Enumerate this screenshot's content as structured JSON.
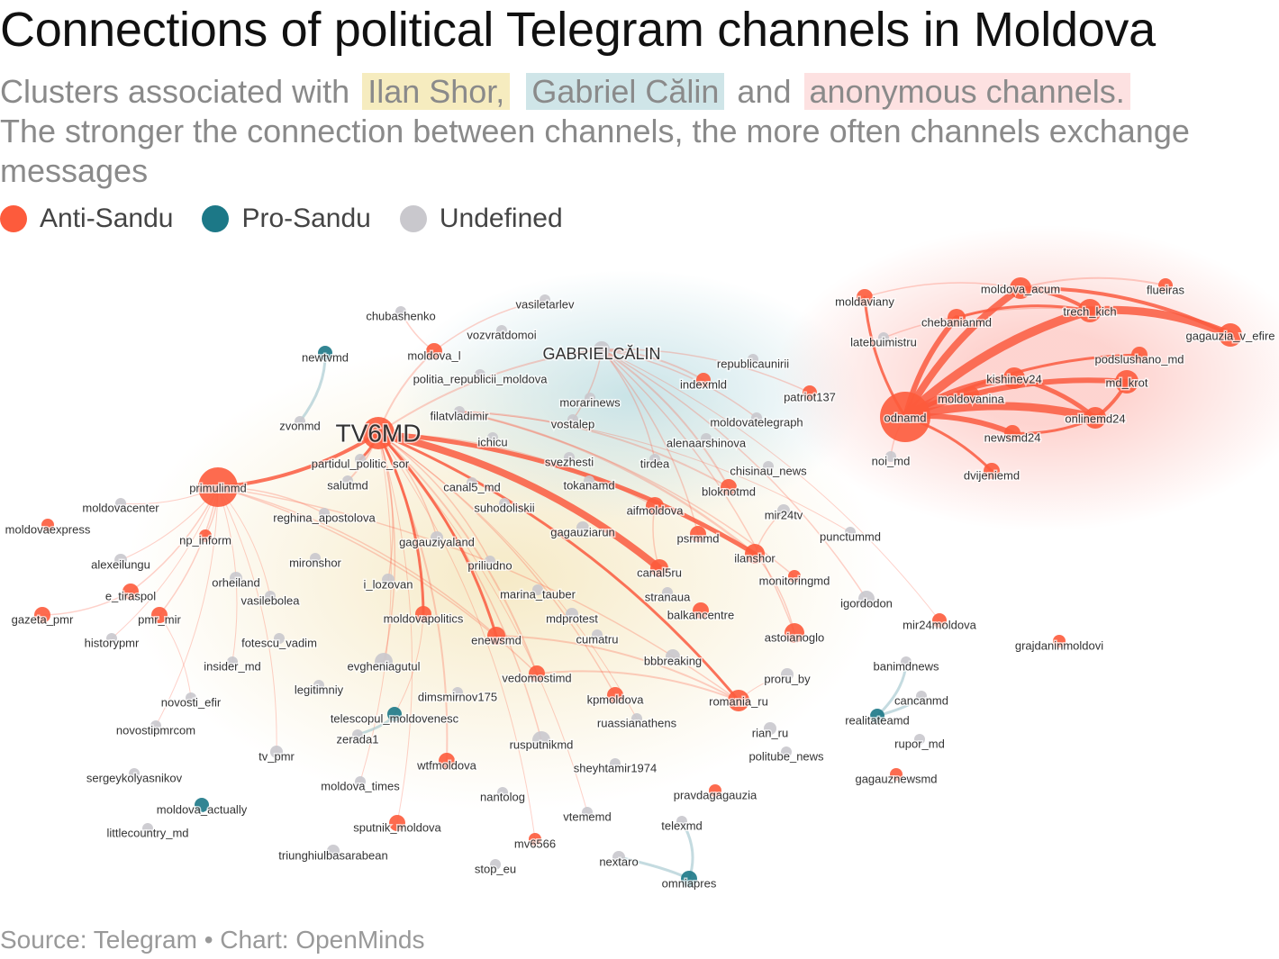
{
  "header": {
    "title": "Connections of political Telegram channels in Moldova",
    "subtitle": {
      "lead": "Clusters associated with",
      "highlights": [
        {
          "text": "Ilan Shor,",
          "color": "#f6ecbf"
        },
        {
          "text": "Gabriel Călin",
          "color": "#cfe5e8"
        }
      ],
      "joiner": "and",
      "last": {
        "text": "anonymous channels.",
        "color": "#fde1e1"
      },
      "note": "The stronger the connection between channels, the more often channels exchange messages"
    }
  },
  "legend": [
    {
      "label": "Anti-Sandu",
      "color": "#fd5b3c"
    },
    {
      "label": "Pro-Sandu",
      "color": "#1c7887"
    },
    {
      "label": "Undefined",
      "color": "#c9c8cd"
    }
  ],
  "nodes": [
    {
      "label": "moldova_acum",
      "color": "#fd5b3c"
    },
    {
      "label": "flueiras",
      "color": "#fd5b3c"
    },
    {
      "label": "moldaviany",
      "color": "#fd5b3c"
    },
    {
      "label": "chebanianmd",
      "color": "#fd5b3c"
    },
    {
      "label": "trech_kich",
      "color": "#fd5b3c"
    },
    {
      "label": "latebuimistru",
      "color": "#c9c8cd"
    },
    {
      "label": "gagauzia_v_efire",
      "color": "#fd5b3c"
    },
    {
      "label": "podslushano_md",
      "color": "#fd5b3c"
    },
    {
      "label": "kishinev24",
      "color": "#fd5b3c"
    },
    {
      "label": "md_krot",
      "color": "#fd5b3c"
    },
    {
      "label": "moldovanina",
      "color": "#fd5b3c"
    },
    {
      "label": "odnamd",
      "color": "#fd5b3c"
    },
    {
      "label": "onlinemd24",
      "color": "#fd5b3c"
    },
    {
      "label": "newsmd24",
      "color": "#fd5b3c"
    },
    {
      "label": "noi_md",
      "color": "#c9c8cd"
    },
    {
      "label": "dvijeniemd",
      "color": "#fd5b3c"
    },
    {
      "label": "vasiletarlev",
      "color": "#c9c8cd"
    },
    {
      "label": "chubashenko",
      "color": "#c9c8cd"
    },
    {
      "label": "vozvratdomoi",
      "color": "#c9c8cd"
    },
    {
      "label": "newtvmd",
      "color": "#1c7887"
    },
    {
      "label": "moldova_l",
      "color": "#fd5b3c"
    },
    {
      "label": "GABRIELCĂLIN",
      "color": "#c9c8cd"
    },
    {
      "label": "politia_republicii_moldova",
      "color": "#c9c8cd"
    },
    {
      "label": "republicaunirii",
      "color": "#c9c8cd"
    },
    {
      "label": "indexmld",
      "color": "#fd5b3c"
    },
    {
      "label": "patriot137",
      "color": "#fd5b3c"
    },
    {
      "label": "morarinews",
      "color": "#c9c8cd"
    },
    {
      "label": "zvonmd",
      "color": "#c9c8cd"
    },
    {
      "label": "TV6MD",
      "color": "#fd5b3c"
    },
    {
      "label": "filatvladimir",
      "color": "#c9c8cd"
    },
    {
      "label": "vostalep",
      "color": "#c9c8cd"
    },
    {
      "label": "moldovatelegraph",
      "color": "#c9c8cd"
    },
    {
      "label": "ichicu",
      "color": "#c9c8cd"
    },
    {
      "label": "alenaarshinova",
      "color": "#c9c8cd"
    },
    {
      "label": "partidul_politic_sor",
      "color": "#c9c8cd"
    },
    {
      "label": "svezhesti",
      "color": "#c9c8cd"
    },
    {
      "label": "tirdea",
      "color": "#c9c8cd"
    },
    {
      "label": "chisinau_news",
      "color": "#c9c8cd"
    },
    {
      "label": "primulinmd",
      "color": "#fd5b3c"
    },
    {
      "label": "salutmd",
      "color": "#c9c8cd"
    },
    {
      "label": "canal5_md",
      "color": "#c9c8cd"
    },
    {
      "label": "tokanamd",
      "color": "#c9c8cd"
    },
    {
      "label": "bloknotmd",
      "color": "#fd5b3c"
    },
    {
      "label": "moldovacenter",
      "color": "#c9c8cd"
    },
    {
      "label": "suhodoliskii",
      "color": "#c9c8cd"
    },
    {
      "label": "aifmoldova",
      "color": "#fd5b3c"
    },
    {
      "label": "mir24tv",
      "color": "#c9c8cd"
    },
    {
      "label": "reghina_apostolova",
      "color": "#c9c8cd"
    },
    {
      "label": "moldovaexpress",
      "color": "#fd5b3c"
    },
    {
      "label": "gagauziarun",
      "color": "#c9c8cd"
    },
    {
      "label": "np_inform",
      "color": "#fd5b3c"
    },
    {
      "label": "gagauziyaland",
      "color": "#c9c8cd"
    },
    {
      "label": "psrmmd",
      "color": "#fd5b3c"
    },
    {
      "label": "punctummd",
      "color": "#c9c8cd"
    },
    {
      "label": "alexeilungu",
      "color": "#c9c8cd"
    },
    {
      "label": "mironshor",
      "color": "#c9c8cd"
    },
    {
      "label": "priliudno",
      "color": "#c9c8cd"
    },
    {
      "label": "ilanshor",
      "color": "#fd5b3c"
    },
    {
      "label": "canal5ru",
      "color": "#fd5b3c"
    },
    {
      "label": "orheiland",
      "color": "#c9c8cd"
    },
    {
      "label": "i_lozovan",
      "color": "#c9c8cd"
    },
    {
      "label": "monitoringmd",
      "color": "#fd5b3c"
    },
    {
      "label": "e_tiraspol",
      "color": "#fd5b3c"
    },
    {
      "label": "marina_tauber",
      "color": "#c9c8cd"
    },
    {
      "label": "stranaua",
      "color": "#c9c8cd"
    },
    {
      "label": "igordodon",
      "color": "#c9c8cd"
    },
    {
      "label": "vasilebolea",
      "color": "#c9c8cd"
    },
    {
      "label": "gazeta_pmr",
      "color": "#fd5b3c"
    },
    {
      "label": "pmr_mir",
      "color": "#fd5b3c"
    },
    {
      "label": "moldovapolitics",
      "color": "#fd5b3c"
    },
    {
      "label": "mdprotest",
      "color": "#c9c8cd"
    },
    {
      "label": "balkancentre",
      "color": "#fd5b3c"
    },
    {
      "label": "mir24moldova",
      "color": "#fd5b3c"
    },
    {
      "label": "historypmr",
      "color": "#c9c8cd"
    },
    {
      "label": "astoianoglo",
      "color": "#fd5b3c"
    },
    {
      "label": "enewsmd",
      "color": "#fd5b3c"
    },
    {
      "label": "cumatru",
      "color": "#c9c8cd"
    },
    {
      "label": "fotescu_vadim",
      "color": "#c9c8cd"
    },
    {
      "label": "grajdaninmoldovi",
      "color": "#fd5b3c"
    },
    {
      "label": "insider_md",
      "color": "#c9c8cd"
    },
    {
      "label": "evgheniagutul",
      "color": "#c9c8cd"
    },
    {
      "label": "bbbreaking",
      "color": "#c9c8cd"
    },
    {
      "label": "banimdnews",
      "color": "#c9c8cd"
    },
    {
      "label": "vedomostimd",
      "color": "#fd5b3c"
    },
    {
      "label": "proru_by",
      "color": "#c9c8cd"
    },
    {
      "label": "legitimniy",
      "color": "#c9c8cd"
    },
    {
      "label": "dimsmirnov175",
      "color": "#c9c8cd"
    },
    {
      "label": "kpmoldova",
      "color": "#fd5b3c"
    },
    {
      "label": "romania_ru",
      "color": "#fd5b3c"
    },
    {
      "label": "cancanmd",
      "color": "#c9c8cd"
    },
    {
      "label": "novosti_efir",
      "color": "#c9c8cd"
    },
    {
      "label": "telescopul_moldovenesc",
      "color": "#1c7887"
    },
    {
      "label": "realitateamd",
      "color": "#1c7887"
    },
    {
      "label": "ruassianathens",
      "color": "#c9c8cd"
    },
    {
      "label": "novostipmrcom",
      "color": "#c9c8cd"
    },
    {
      "label": "rian_ru",
      "color": "#c9c8cd"
    },
    {
      "label": "zerada1",
      "color": "#c9c8cd"
    },
    {
      "label": "rusputnikmd",
      "color": "#c9c8cd"
    },
    {
      "label": "rupor_md",
      "color": "#c9c8cd"
    },
    {
      "label": "tv_pmr",
      "color": "#c9c8cd"
    },
    {
      "label": "politube_news",
      "color": "#c9c8cd"
    },
    {
      "label": "wtfmoldova",
      "color": "#fd5b3c"
    },
    {
      "label": "sheyhtamir1974",
      "color": "#c9c8cd"
    },
    {
      "label": "sergeykolyasnikov",
      "color": "#c9c8cd"
    },
    {
      "label": "gagauznewsmd",
      "color": "#fd5b3c"
    },
    {
      "label": "moldova_times",
      "color": "#c9c8cd"
    },
    {
      "label": "pravdagagauzia",
      "color": "#fd5b3c"
    },
    {
      "label": "nantolog",
      "color": "#c9c8cd"
    },
    {
      "label": "moldova_actually",
      "color": "#1c7887"
    },
    {
      "label": "vtememd",
      "color": "#c9c8cd"
    },
    {
      "label": "sputnik_moldova",
      "color": "#fd5b3c"
    },
    {
      "label": "telexmd",
      "color": "#c9c8cd"
    },
    {
      "label": "littlecountry_md",
      "color": "#c9c8cd"
    },
    {
      "label": "mv6566",
      "color": "#fd5b3c"
    },
    {
      "label": "triunghiulbasarabean",
      "color": "#c9c8cd"
    },
    {
      "label": "nextaro",
      "color": "#c9c8cd"
    },
    {
      "label": "stop_eu",
      "color": "#c9c8cd"
    },
    {
      "label": "omniapres",
      "color": "#1c7887"
    }
  ],
  "footer": {
    "source": "Source: Telegram • Chart: OpenMinds"
  }
}
